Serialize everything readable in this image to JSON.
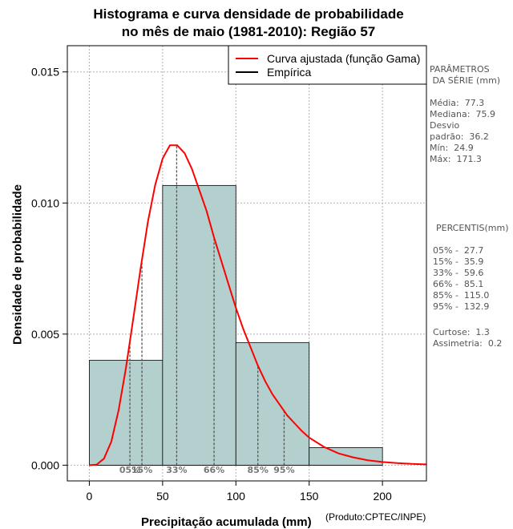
{
  "chart_data": {
    "type": "histogram",
    "title_line1": "Histograma e curva densidade de probabilidade",
    "title_line2": "no mês de maio (1981-2010): Região 57",
    "xlabel": "Precipitação acumulada (mm)",
    "ylabel": "Densidade de probabilidade",
    "credit": "(Produto:CPTEC/INPE)",
    "xlim": [
      -15,
      230
    ],
    "ylim": [
      -0.0006,
      0.016
    ],
    "x_ticks": [
      0,
      50,
      100,
      150,
      200
    ],
    "y_ticks": [
      0.0,
      0.005,
      0.01,
      0.015
    ],
    "y_tick_labels": [
      "0.000",
      "0.005",
      "0.010",
      "0.015"
    ],
    "grid": true,
    "bins": [
      {
        "start": 0,
        "end": 50,
        "density": 0.004
      },
      {
        "start": 50,
        "end": 100,
        "density": 0.01067
      },
      {
        "start": 100,
        "end": 150,
        "density": 0.00467
      },
      {
        "start": 150,
        "end": 200,
        "density": 0.00067
      }
    ],
    "fitted_curve": {
      "name": "Curva ajustada (função Gama)",
      "color": "#ff0000",
      "x": [
        0,
        5,
        10,
        15,
        20,
        25,
        30,
        35,
        40,
        45,
        50,
        55,
        60,
        65,
        70,
        75,
        80,
        85,
        90,
        95,
        100,
        105,
        110,
        115,
        120,
        125,
        130,
        135,
        140,
        145,
        150,
        160,
        170,
        180,
        190,
        200,
        210,
        220,
        230
      ],
      "y": [
        0.0,
        2e-05,
        0.00025,
        0.0009,
        0.0021,
        0.0037,
        0.0056,
        0.0075,
        0.0093,
        0.0107,
        0.0117,
        0.0122,
        0.0122,
        0.0119,
        0.0113,
        0.0105,
        0.0097,
        0.0087,
        0.0078,
        0.0069,
        0.006,
        0.0052,
        0.0045,
        0.0038,
        0.0032,
        0.0027,
        0.0023,
        0.0019,
        0.0016,
        0.0013,
        0.00105,
        0.0007,
        0.00045,
        0.0003,
        0.00019,
        0.00012,
        8e-05,
        5e-05,
        3e-05
      ]
    },
    "empirical_legend": "Empírica",
    "percentile_lines": [
      {
        "label": "05%",
        "x": 27.7
      },
      {
        "label": "15%",
        "x": 35.9
      },
      {
        "label": "33%",
        "x": 59.6
      },
      {
        "label": "66%",
        "x": 85.1
      },
      {
        "label": "85%",
        "x": 115.0
      },
      {
        "label": "95%",
        "x": 132.9
      }
    ],
    "colors": {
      "bars": "#b3cfce",
      "curve": "#ff0000",
      "grid": "#b0b0b0",
      "percentile": "#555555"
    }
  },
  "side_panel": {
    "params_title": "PARÂMETROS\n DA SÉRIE (mm)",
    "params_body": "Média:  77.3\nMediana:  75.9\nDesvio\npadrão:  36.2\nMín:  24.9\nMáx:  171.3",
    "percentis_title": "PERCENTIS(mm)",
    "percentis_body": "05% -  27.7\n15% -  35.9\n33% -  59.6\n66% -  85.1\n85% -  115.0\n95% -  132.9",
    "extra_body": "Curtose:  1.3\nAssimetria:  0.2"
  }
}
